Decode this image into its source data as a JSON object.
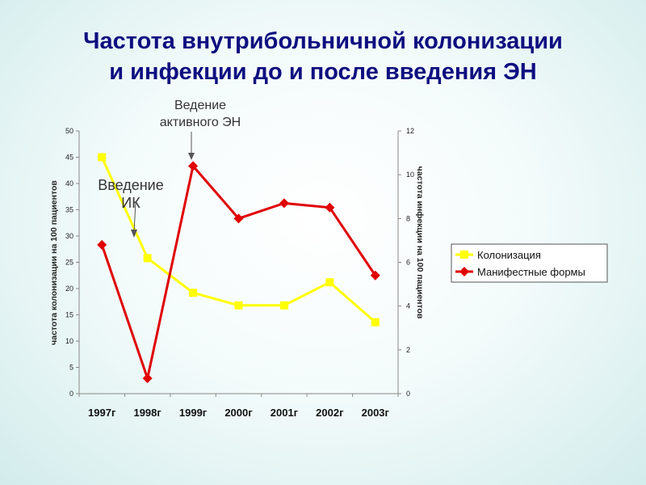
{
  "title": {
    "line1": "Частота внутрибольничной колонизации",
    "line2": "и инфекции до и после введения ЭН"
  },
  "annotations": {
    "en_line1": "Ведение",
    "en_line2": "активного ЭН",
    "ik_line1": "Введение",
    "ik_line2": "ИК"
  },
  "colors": {
    "title": "#0e0e80",
    "colonization": "#ffff00",
    "infection": "#e00000"
  },
  "chart_data": {
    "type": "line",
    "categories": [
      "1997г",
      "1998г",
      "1999г",
      "2000г",
      "2001г",
      "2002г",
      "2003г"
    ],
    "ylabel": "частота колонизации на 100 пациентов",
    "y2label": "частота инфекции на 100 пациентов",
    "ylim": [
      0,
      50
    ],
    "y2lim": [
      0,
      12
    ],
    "yticks": [
      0,
      5,
      10,
      15,
      20,
      25,
      30,
      35,
      40,
      45,
      50
    ],
    "y2ticks": [
      0,
      2,
      4,
      6,
      8,
      10,
      12
    ],
    "grid": false,
    "legend_position": "right",
    "series": [
      {
        "name": "Колонизация",
        "axis": "left",
        "color": "#ffff00",
        "marker": "square",
        "values": [
          45,
          25.8,
          19.2,
          16.8,
          16.8,
          21.2,
          13.6
        ]
      },
      {
        "name": "Манифестные формы",
        "axis": "right",
        "color": "#e00000",
        "marker": "diamond",
        "values": [
          6.8,
          0.7,
          10.4,
          8.0,
          8.7,
          8.5,
          5.4
        ]
      }
    ]
  }
}
